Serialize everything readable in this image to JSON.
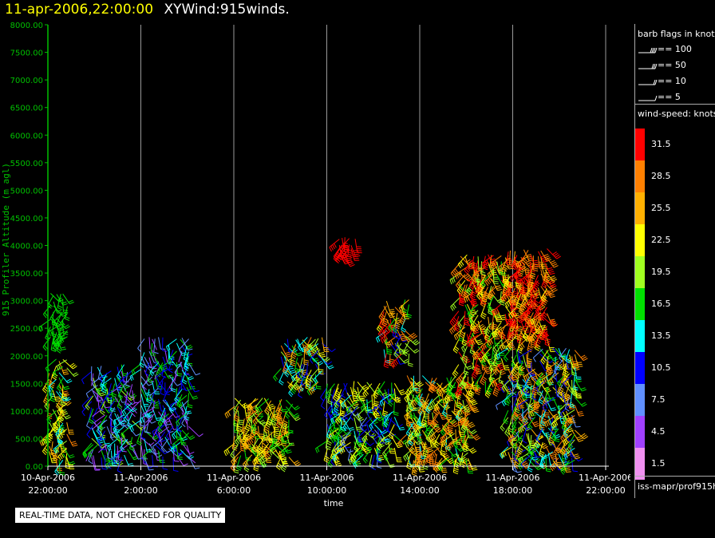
{
  "header": {
    "timestamp": "11-apr-2006,22:00:00",
    "product": "XYWind:915winds."
  },
  "qc_note": "REAL-TIME DATA, NOT CHECKED FOR QUALITY",
  "legend": {
    "barb_title": "barb flags in knots",
    "barb_flags": [
      "== 100",
      "== 50",
      "== 10",
      "== 5"
    ],
    "speed_title": "wind-speed: knots",
    "speed_bins": [
      {
        "label": "31.5",
        "color": "#ff0000"
      },
      {
        "label": "28.5",
        "color": "#ff8000"
      },
      {
        "label": "25.5",
        "color": "#ffb000"
      },
      {
        "label": "22.5",
        "color": "#ffff00"
      },
      {
        "label": "19.5",
        "color": "#a0ff20"
      },
      {
        "label": "16.5",
        "color": "#00e000"
      },
      {
        "label": "13.5",
        "color": "#00ffff"
      },
      {
        "label": "10.5",
        "color": "#0000ff"
      },
      {
        "label": "7.5",
        "color": "#6090ff"
      },
      {
        "label": "4.5",
        "color": "#a040ff"
      },
      {
        "label": "1.5",
        "color": "#f090f0"
      }
    ],
    "source": "iss-mapr/prof915h"
  },
  "chart_data": {
    "type": "scatter",
    "title": "11-apr-2006,22:00:00 XYWind:915winds.",
    "xlabel": "time",
    "ylabel": "915 Profiler Altitude (m agl)",
    "ylim": [
      0,
      8000
    ],
    "xlim": [
      0,
      24
    ],
    "y_ticks": [
      "0.00",
      "500.00",
      "1000.00",
      "1500.00",
      "2000.00",
      "2500.00",
      "3000.00",
      "3500.00",
      "4000.00",
      "4500.00",
      "5000.00",
      "5500.00",
      "6000.00",
      "6500.00",
      "7000.00",
      "7500.00",
      "8000.00"
    ],
    "x_ticks": [
      {
        "date": "10-Apr-2006",
        "time": "22:00:00"
      },
      {
        "date": "11-Apr-2006",
        "time": "2:00:00"
      },
      {
        "date": "11-Apr-2006",
        "time": "6:00:00"
      },
      {
        "date": "11-Apr-2006",
        "time": "10:00:00"
      },
      {
        "date": "11-Apr-2006",
        "time": "14:00:00"
      },
      {
        "date": "11-Apr-2006",
        "time": "18:00:00"
      },
      {
        "date": "11-Apr-2006",
        "time": "22:00:00"
      }
    ],
    "grid": "vertical lines at major time ticks",
    "axis_color": "#00c000",
    "clusters": [
      {
        "t": 0.0,
        "t_end": 0.9,
        "alt_min": 100,
        "alt_max": 2000,
        "speed": [
          12,
          28
        ]
      },
      {
        "t": 0.1,
        "t_end": 0.9,
        "alt_min": 2300,
        "alt_max": 3200,
        "speed": [
          16,
          18
        ]
      },
      {
        "t": 1.8,
        "t_end": 3.7,
        "alt_min": 150,
        "alt_max": 1900,
        "speed": [
          3,
          20
        ]
      },
      {
        "t": 4.0,
        "t_end": 6.2,
        "alt_min": 150,
        "alt_max": 2400,
        "speed": [
          3,
          18
        ]
      },
      {
        "t": 8.0,
        "t_end": 10.6,
        "alt_min": 150,
        "alt_max": 1300,
        "speed": [
          15,
          28
        ]
      },
      {
        "t": 10.0,
        "t_end": 11.9,
        "alt_min": 1500,
        "alt_max": 2400,
        "speed": [
          8,
          28
        ]
      },
      {
        "t": 12.5,
        "t_end": 13.3,
        "alt_min": 3800,
        "alt_max": 4200,
        "speed": [
          31,
          33
        ]
      },
      {
        "t": 12.0,
        "t_end": 15.0,
        "alt_min": 200,
        "alt_max": 1600,
        "speed": [
          8,
          24
        ]
      },
      {
        "t": 14.4,
        "t_end": 15.6,
        "alt_min": 2000,
        "alt_max": 3100,
        "speed": [
          10,
          32
        ]
      },
      {
        "t": 15.4,
        "t_end": 18.2,
        "alt_min": 100,
        "alt_max": 1700,
        "speed": [
          14,
          30
        ]
      },
      {
        "t": 17.6,
        "t_end": 19.6,
        "alt_min": 1500,
        "alt_max": 3900,
        "speed": [
          16,
          33
        ]
      },
      {
        "t": 19.6,
        "t_end": 21.6,
        "alt_min": 2300,
        "alt_max": 4000,
        "speed": [
          22,
          34
        ]
      },
      {
        "t": 19.8,
        "t_end": 22.8,
        "alt_min": 100,
        "alt_max": 2200,
        "speed": [
          8,
          29
        ]
      }
    ]
  }
}
